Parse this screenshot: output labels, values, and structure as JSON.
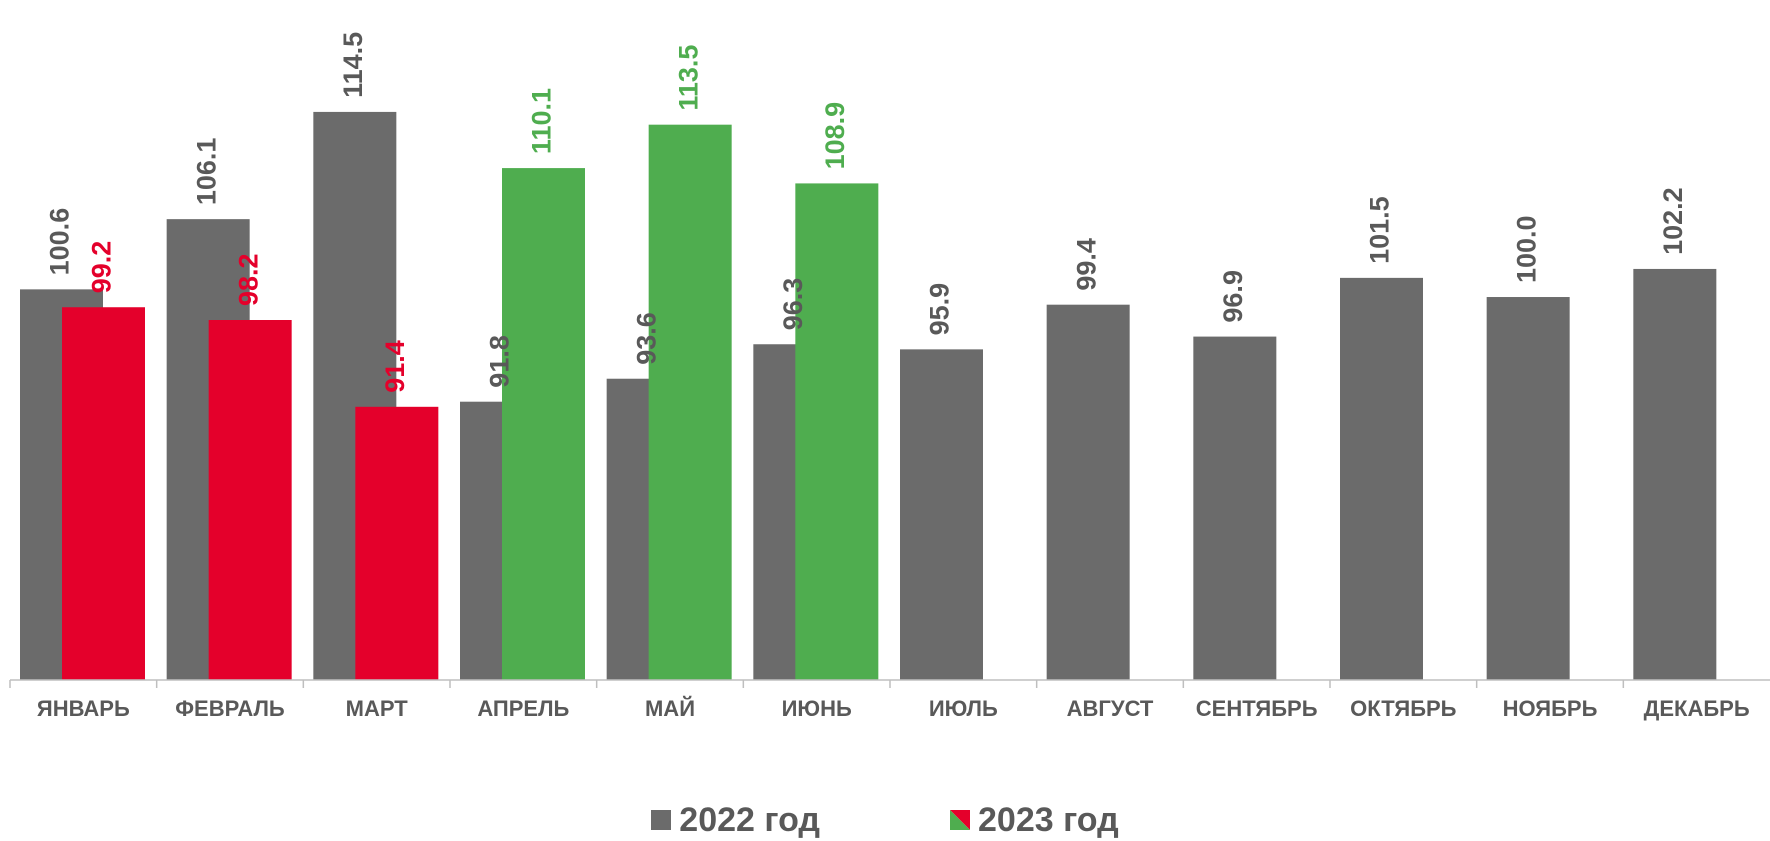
{
  "chart_data": {
    "type": "bar",
    "categories": [
      "ЯНВАРЬ",
      "ФЕВРАЛЬ",
      "МАРТ",
      "АПРЕЛЬ",
      "МАЙ",
      "ИЮНЬ",
      "ИЮЛЬ",
      "АВГУСТ",
      "СЕНТЯБРЬ",
      "ОКТЯБРЬ",
      "НОЯБРЬ",
      "ДЕКАБРЬ"
    ],
    "series": [
      {
        "name": "2022 год",
        "values": [
          100.6,
          106.1,
          114.5,
          91.8,
          93.6,
          96.3,
          95.9,
          99.4,
          96.9,
          101.5,
          100.0,
          102.2
        ],
        "color": "#6b6b6b"
      },
      {
        "name": "2023 год",
        "values": [
          99.2,
          98.2,
          91.4,
          110.1,
          113.5,
          108.9,
          null,
          null,
          null,
          null,
          null,
          null
        ],
        "colors": [
          "#e4002b",
          "#e4002b",
          "#e4002b",
          "#4fad4f",
          "#4fad4f",
          "#4fad4f"
        ]
      }
    ],
    "value_labels": {
      "s2022": [
        "100.6",
        "106.1",
        "114.5",
        "91.8",
        "93.6",
        "96.3",
        "95.9",
        "99.4",
        "96.9",
        "101.5",
        "100.0",
        "102.2"
      ],
      "s2023": [
        "99.2",
        "98.2",
        "91.4",
        "110.1",
        "113.5",
        "108.9"
      ]
    },
    "ylim": [
      70,
      117
    ],
    "grid": false,
    "legend_position": "bottom-center",
    "axis_color": "#bfbfbf",
    "label_color_gray": "#595959",
    "legend_swatch_red": "#e4002b",
    "legend_swatch_green": "#4fad4f"
  },
  "legend": {
    "item_2022": "2022 год",
    "item_2023": "2023 год"
  }
}
